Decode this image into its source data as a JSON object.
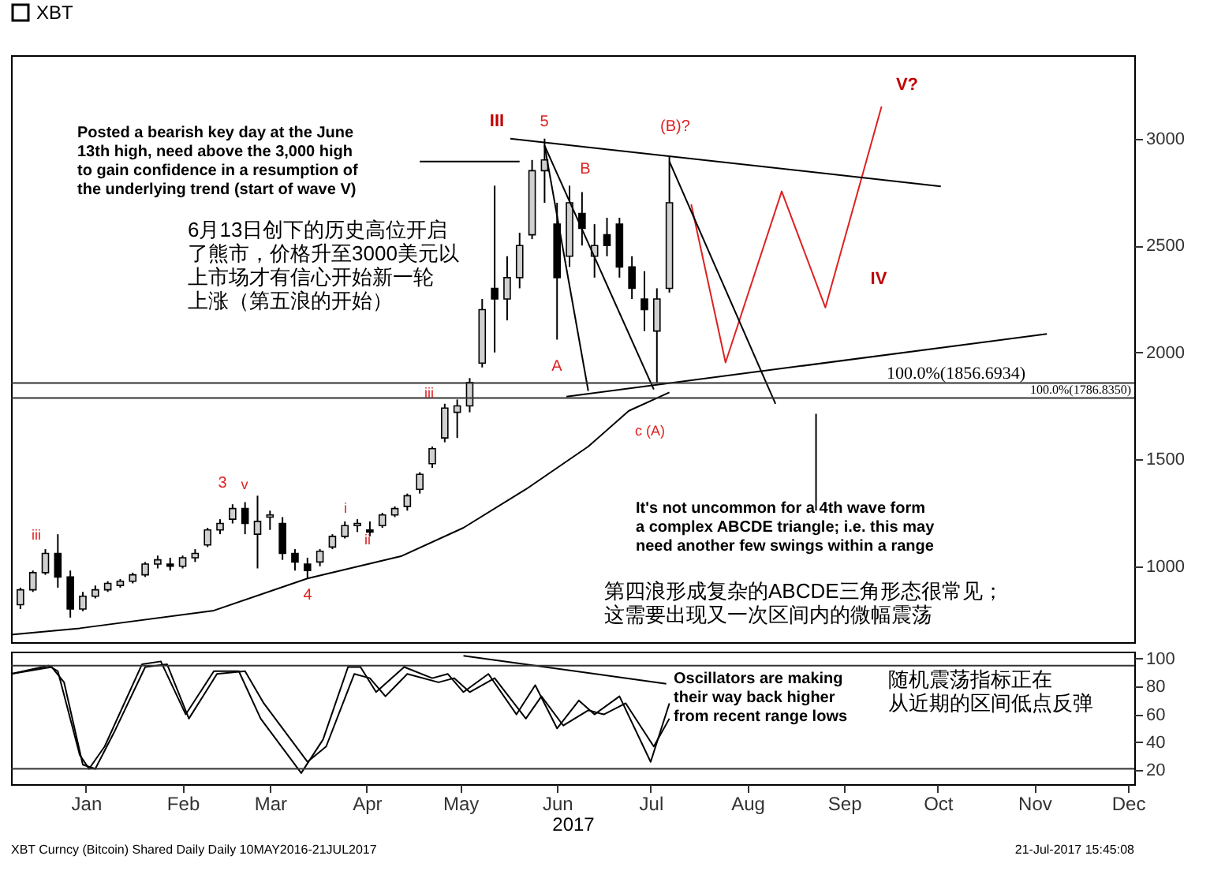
{
  "chart_data": [
    {
      "type": "candlestick",
      "legend": "top",
      "tick_labels": "y",
      "xlim": [
        "2016-12-22",
        "2017-12-17"
      ],
      "ylim": [
        645,
        3390
      ],
      "yticks": [
        1000,
        1500,
        2000,
        2500,
        3000
      ],
      "series": [
        {
          "name": "XBT",
          "type": "candlestick",
          "color": "#000000",
          "x": [
            "2016-12-25",
            "2016-12-29",
            "2017-01-02",
            "2017-01-06",
            "2017-01-10",
            "2017-01-14",
            "2017-01-18",
            "2017-01-22",
            "2017-01-26",
            "2017-01-30",
            "2017-02-03",
            "2017-02-07",
            "2017-02-11",
            "2017-02-15",
            "2017-02-19",
            "2017-02-23",
            "2017-02-27",
            "2017-03-03",
            "2017-03-07",
            "2017-03-11",
            "2017-03-15",
            "2017-03-19",
            "2017-03-23",
            "2017-03-27",
            "2017-03-31",
            "2017-04-04",
            "2017-04-08",
            "2017-04-12",
            "2017-04-16",
            "2017-04-20",
            "2017-04-24",
            "2017-04-28",
            "2017-05-02",
            "2017-05-06",
            "2017-05-10",
            "2017-05-14",
            "2017-05-18",
            "2017-05-22",
            "2017-05-26",
            "2017-05-30",
            "2017-06-03",
            "2017-06-07",
            "2017-06-11",
            "2017-06-15",
            "2017-06-19",
            "2017-06-23",
            "2017-06-27",
            "2017-07-01",
            "2017-07-05",
            "2017-07-09",
            "2017-07-13",
            "2017-07-17",
            "2017-07-21"
          ],
          "ohlc": [
            [
              820,
              900,
              800,
              890
            ],
            [
              890,
              980,
              880,
              970
            ],
            [
              970,
              1080,
              960,
              1060
            ],
            [
              1060,
              1150,
              900,
              950
            ],
            [
              950,
              980,
              760,
              800
            ],
            [
              800,
              880,
              790,
              860
            ],
            [
              860,
              910,
              850,
              890
            ],
            [
              890,
              930,
              880,
              920
            ],
            [
              910,
              940,
              900,
              930
            ],
            [
              930,
              970,
              920,
              960
            ],
            [
              960,
              1020,
              950,
              1010
            ],
            [
              1010,
              1050,
              990,
              1030
            ],
            [
              1010,
              1040,
              980,
              1000
            ],
            [
              1000,
              1050,
              990,
              1040
            ],
            [
              1040,
              1080,
              1020,
              1060
            ],
            [
              1100,
              1180,
              1090,
              1170
            ],
            [
              1170,
              1220,
              1150,
              1200
            ],
            [
              1220,
              1290,
              1200,
              1270
            ],
            [
              1270,
              1300,
              1150,
              1200
            ],
            [
              1150,
              1330,
              990,
              1210
            ],
            [
              1230,
              1260,
              1170,
              1240
            ],
            [
              1200,
              1230,
              1030,
              1060
            ],
            [
              1060,
              1080,
              980,
              1020
            ],
            [
              1010,
              1040,
              945,
              980
            ],
            [
              1020,
              1080,
              1000,
              1070
            ],
            [
              1090,
              1150,
              1080,
              1140
            ],
            [
              1140,
              1210,
              1130,
              1190
            ],
            [
              1190,
              1220,
              1160,
              1200
            ],
            [
              1170,
              1210,
              1140,
              1160
            ],
            [
              1190,
              1250,
              1180,
              1240
            ],
            [
              1240,
              1280,
              1230,
              1270
            ],
            [
              1280,
              1340,
              1260,
              1330
            ],
            [
              1360,
              1440,
              1340,
              1430
            ],
            [
              1480,
              1560,
              1460,
              1550
            ],
            [
              1600,
              1760,
              1580,
              1740
            ],
            [
              1720,
              1780,
              1600,
              1750
            ],
            [
              1750,
              1880,
              1720,
              1860
            ],
            [
              1950,
              2250,
              1930,
              2200
            ],
            [
              2300,
              2780,
              2000,
              2250
            ],
            [
              2250,
              2450,
              2150,
              2350
            ],
            [
              2350,
              2560,
              2300,
              2500
            ],
            [
              2550,
              2900,
              2530,
              2850
            ],
            [
              2850,
              3000,
              2700,
              2900
            ],
            [
              2600,
              2700,
              2060,
              2350
            ],
            [
              2450,
              2780,
              2400,
              2700
            ],
            [
              2650,
              2750,
              2500,
              2580
            ],
            [
              2450,
              2600,
              2350,
              2500
            ],
            [
              2550,
              2630,
              2450,
              2500
            ],
            [
              2600,
              2630,
              2350,
              2400
            ],
            [
              2400,
              2450,
              2250,
              2300
            ],
            [
              2250,
              2380,
              2100,
              2200
            ],
            [
              2100,
              2300,
              1860,
              2250
            ],
            [
              2300,
              2920,
              2280,
              2700
            ]
          ]
        },
        {
          "type": "line",
          "color": "#000000",
          "x": [
            "2016-12-22",
            "2017-01-13",
            "2017-02-25",
            "2017-03-27",
            "2017-04-26",
            "2017-05-16",
            "2017-06-05",
            "2017-06-25",
            "2017-07-08",
            "2017-07-21"
          ],
          "values": [
            680,
            710,
            793,
            943,
            1047,
            1180,
            1360,
            1560,
            1727,
            1813
          ]
        },
        {
          "type": "line",
          "color": "#dd2222",
          "x": [
            "2017-07-28",
            "2017-08-08",
            "2017-08-26",
            "2017-09-09",
            "2017-09-27"
          ],
          "values": [
            2693,
            1953,
            2753,
            2210,
            3150
          ]
        },
        {
          "type": "line",
          "color": "#000000",
          "x": [
            "2017-05-31",
            "2017-10-16"
          ],
          "values": [
            3000,
            2777
          ]
        },
        {
          "type": "line",
          "color": "#000000",
          "x": [
            "2017-06-18",
            "2017-11-19"
          ],
          "values": [
            1793,
            2087
          ]
        },
        {
          "type": "line",
          "color": "#000000",
          "x": [
            "2017-06-11",
            "2017-07-16"
          ],
          "values": [
            2967,
            1827
          ]
        },
        {
          "type": "line",
          "color": "#000000",
          "x": [
            "2017-06-11",
            "2017-06-25"
          ],
          "values": [
            2967,
            1820
          ]
        },
        {
          "type": "line",
          "color": "#000000",
          "x": [
            "2017-07-21",
            "2017-08-24"
          ],
          "values": [
            2893,
            1760
          ]
        },
        {
          "type": "line",
          "color": "#000000",
          "x": [
            "2017-05-02",
            "2017-06-03"
          ],
          "values": [
            2893,
            2893
          ]
        },
        {
          "type": "line",
          "color": "#000000",
          "x": [
            "2017-09-06",
            "2017-09-06"
          ],
          "values": [
            1713,
            1260
          ]
        }
      ],
      "ref_lines": [
        {
          "axis": "y",
          "value": 1856.6934,
          "label": "100.0%(1856.6934)"
        },
        {
          "axis": "y",
          "value": 1786.835,
          "label": "100.0%(1786.8350)"
        }
      ],
      "annotations": [
        "Posted a bearish key day at the June\n13th  high, need above the 3,000 high\nto gain confidence in a resumption of\nthe underlying trend (start of wave V)",
        "6月13日创下的历史高位开启了熊市，价格升至3000美元以上市场才有信心开始新一轮上涨（第五浪的开始）",
        "It's not uncommon  for  a 4th wave form\na complex ABCDE triangle; i.e. this may\nneed another few swings within a range",
        "第四浪形成复杂的ABCDE三角形态很常见；这需要出现又一次区间内的微幅震荡",
        "III",
        "5",
        "B",
        "(B)?",
        "V?",
        "IV",
        "A",
        "iii",
        "c (A)",
        "3",
        "v",
        "4",
        "i",
        "ii",
        "iii"
      ]
    },
    {
      "type": "line",
      "xlabel": "2017",
      "xlim": [
        "2016-12-22",
        "2017-12-17"
      ],
      "ylim": [
        10,
        105
      ],
      "yticks": [
        20,
        40,
        60,
        80,
        100
      ],
      "xticks": [
        {
          "value": "2017-01-15",
          "label": "Jan"
        },
        {
          "value": "2017-02-15",
          "label": "Feb"
        },
        {
          "value": "2017-03-15",
          "label": "Mar"
        },
        {
          "value": "2017-04-15",
          "label": "Apr"
        },
        {
          "value": "2017-05-15",
          "label": "May"
        },
        {
          "value": "2017-06-15",
          "label": "Jun"
        },
        {
          "value": "2017-07-15",
          "label": "Jul"
        },
        {
          "value": "2017-08-15",
          "label": "Aug"
        },
        {
          "value": "2017-09-15",
          "label": "Sep"
        },
        {
          "value": "2017-10-15",
          "label": "Oct"
        },
        {
          "value": "2017-11-15",
          "label": "Nov"
        },
        {
          "value": "2017-12-15",
          "label": "Dec"
        }
      ],
      "series": [
        {
          "color": "#000000",
          "x": [
            "2016-12-22",
            "2017-01-03",
            "2017-01-06",
            "2017-01-13",
            "2017-01-16",
            "2017-01-21",
            "2017-02-02",
            "2017-02-08",
            "2017-02-16",
            "2017-02-25",
            "2017-03-05",
            "2017-03-12",
            "2017-03-25",
            "2017-04-01",
            "2017-04-09",
            "2017-04-13",
            "2017-04-18",
            "2017-04-27",
            "2017-05-06",
            "2017-05-11",
            "2017-05-16",
            "2017-05-24",
            "2017-06-02",
            "2017-06-08",
            "2017-06-15",
            "2017-06-22",
            "2017-06-27",
            "2017-07-05",
            "2017-07-15",
            "2017-07-21"
          ],
          "values": [
            89,
            95,
            91,
            31,
            21,
            37,
            96,
            98,
            60,
            91,
            91,
            57,
            18,
            42,
            94,
            94,
            76,
            94,
            86,
            89,
            76,
            89,
            60,
            81,
            50,
            70,
            60,
            73,
            26,
            68
          ]
        },
        {
          "color": "#000000",
          "x": [
            "2016-12-22",
            "2017-01-04",
            "2017-01-08",
            "2017-01-14",
            "2017-01-18",
            "2017-01-24",
            "2017-02-03",
            "2017-02-10",
            "2017-02-17",
            "2017-02-26",
            "2017-03-07",
            "2017-03-13",
            "2017-03-27",
            "2017-04-02",
            "2017-04-11",
            "2017-04-16",
            "2017-04-21",
            "2017-04-28",
            "2017-05-08",
            "2017-05-13",
            "2017-05-18",
            "2017-05-26",
            "2017-06-05",
            "2017-06-10",
            "2017-06-17",
            "2017-06-25",
            "2017-06-30",
            "2017-07-07",
            "2017-07-16",
            "2017-07-21"
          ],
          "values": [
            89,
            94,
            83,
            24,
            21,
            47,
            94,
            96,
            57,
            89,
            91,
            68,
            26,
            37,
            89,
            86,
            73,
            89,
            83,
            86,
            76,
            86,
            57,
            73,
            52,
            63,
            60,
            68,
            37,
            57
          ]
        },
        {
          "color": "#000000",
          "x": [
            "2017-05-16",
            "2017-07-20"
          ],
          "values": [
            102,
            82
          ]
        }
      ],
      "ref_lines": [
        {
          "axis": "y",
          "value": 95
        },
        {
          "axis": "y",
          "value": 21
        }
      ],
      "annotations": [
        "Oscillators are making\ntheir way back higher\nfrom recent range lows",
        "随机震荡指标正在从近期的区间低点反弹",
        "XBT Curncy (Bitcoin) Shared Daily  Daily 10MAY2016-21JUL2017",
        "21-Jul-2017 15:45:08"
      ]
    }
  ]
}
